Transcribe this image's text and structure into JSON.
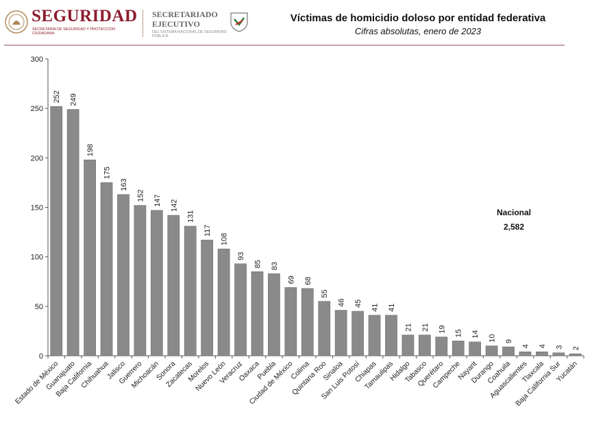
{
  "header": {
    "logo_main": "SEGURIDAD",
    "logo_main_sub": "SECRETARÍA DE SEGURIDAD Y PROTECCIÓN CIUDADANA",
    "logo_secondary": "SECRETARIADO\nEJECUTIVO",
    "logo_secondary_sub": "DEL SISTEMA NACIONAL DE SEGURIDAD PÚBLICA",
    "brand_color": "#8c1d2f"
  },
  "annotation": {
    "label": "Nacional",
    "value": "2,582"
  },
  "chart_data": {
    "type": "bar",
    "title": "Víctimas de homicidio doloso por entidad federativa",
    "subtitle": "Cifras absolutas, enero de 2023",
    "xlabel": "",
    "ylabel": "",
    "ylim": [
      0,
      300
    ],
    "yticks": [
      0,
      50,
      100,
      150,
      200,
      250,
      300
    ],
    "grid": false,
    "bar_color": "#8a8a8a",
    "categories": [
      "Estado de México",
      "Guanajuato",
      "Baja California",
      "Chihuahua",
      "Jalisco",
      "Guerrero",
      "Michoacán",
      "Sonora",
      "Zacatecas",
      "Morelos",
      "Nuevo León",
      "Veracruz",
      "Oaxaca",
      "Puebla",
      "Ciudad de México",
      "Colima",
      "Quintana Roo",
      "Sinaloa",
      "San Luis Potosí",
      "Chiapas",
      "Tamaulipas",
      "Hidalgo",
      "Tabasco",
      "Querétaro",
      "Campeche",
      "Nayarit",
      "Durango",
      "Coahuila",
      "Aguascalientes",
      "Tlaxcala",
      "Baja California Sur",
      "Yucatán"
    ],
    "values": [
      252,
      249,
      198,
      175,
      163,
      152,
      147,
      142,
      131,
      117,
      108,
      93,
      85,
      83,
      69,
      68,
      55,
      46,
      45,
      41,
      41,
      21,
      21,
      19,
      15,
      14,
      10,
      9,
      4,
      4,
      3,
      2
    ]
  }
}
